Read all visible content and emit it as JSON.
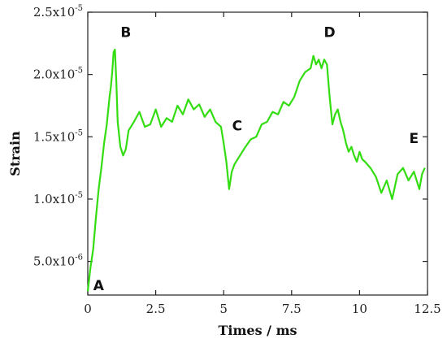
{
  "chart_data": {
    "type": "line",
    "title": "",
    "xlabel": "Times / ms",
    "ylabel": "Strain",
    "xlim": [
      0,
      12.5
    ],
    "ylim": [
      2.3e-06,
      2.5e-05
    ],
    "xticks": [
      {
        "value": 0,
        "label": "0"
      },
      {
        "value": 2.5,
        "label": "2.5"
      },
      {
        "value": 5,
        "label": "5"
      },
      {
        "value": 7.5,
        "label": "7.5"
      },
      {
        "value": 10,
        "label": "10"
      },
      {
        "value": 12.5,
        "label": "12.5"
      }
    ],
    "yticks": [
      {
        "value": 5e-06,
        "mantissa": "5.0x10",
        "exp": "-6"
      },
      {
        "value": 1e-05,
        "mantissa": "1.0x10",
        "exp": "-5"
      },
      {
        "value": 1.5e-05,
        "mantissa": "1.5x10",
        "exp": "-5"
      },
      {
        "value": 2e-05,
        "mantissa": "2.0x10",
        "exp": "-5"
      },
      {
        "value": 2.5e-05,
        "mantissa": "2.5x10",
        "exp": "-5"
      }
    ],
    "grid": false,
    "legend": "none",
    "series": [
      {
        "color": "#33dd11",
        "x": [
          0.0,
          0.1,
          0.2,
          0.3,
          0.4,
          0.5,
          0.6,
          0.7,
          0.8,
          0.85,
          0.9,
          0.95,
          1.0,
          1.05,
          1.1,
          1.2,
          1.3,
          1.4,
          1.5,
          1.7,
          1.9,
          2.1,
          2.3,
          2.5,
          2.7,
          2.9,
          3.1,
          3.3,
          3.5,
          3.7,
          3.9,
          4.1,
          4.3,
          4.5,
          4.7,
          4.9,
          5.0,
          5.1,
          5.2,
          5.3,
          5.4,
          5.6,
          5.8,
          6.0,
          6.2,
          6.4,
          6.6,
          6.8,
          7.0,
          7.2,
          7.4,
          7.6,
          7.8,
          8.0,
          8.2,
          8.3,
          8.4,
          8.5,
          8.6,
          8.7,
          8.8,
          8.9,
          9.0,
          9.1,
          9.2,
          9.3,
          9.4,
          9.5,
          9.6,
          9.7,
          9.8,
          9.9,
          10.0,
          10.1,
          10.2,
          10.4,
          10.6,
          10.8,
          11.0,
          11.2,
          11.4,
          11.6,
          11.8,
          12.0,
          12.2,
          12.3,
          12.4
        ],
        "y": [
          2.6e-06,
          4.5e-06,
          6e-06,
          8.5e-06,
          1.08e-05,
          1.25e-05,
          1.45e-05,
          1.6e-05,
          1.82e-05,
          1.9e-05,
          2.02e-05,
          2.18e-05,
          2.2e-05,
          1.95e-05,
          1.62e-05,
          1.42e-05,
          1.35e-05,
          1.4e-05,
          1.55e-05,
          1.62e-05,
          1.7e-05,
          1.58e-05,
          1.6e-05,
          1.72e-05,
          1.58e-05,
          1.65e-05,
          1.62e-05,
          1.75e-05,
          1.68e-05,
          1.8e-05,
          1.72e-05,
          1.76e-05,
          1.66e-05,
          1.72e-05,
          1.62e-05,
          1.58e-05,
          1.45e-05,
          1.3e-05,
          1.08e-05,
          1.22e-05,
          1.28e-05,
          1.35e-05,
          1.42e-05,
          1.48e-05,
          1.5e-05,
          1.6e-05,
          1.62e-05,
          1.7e-05,
          1.68e-05,
          1.78e-05,
          1.75e-05,
          1.82e-05,
          1.95e-05,
          2.02e-05,
          2.05e-05,
          2.15e-05,
          2.08e-05,
          2.12e-05,
          2.05e-05,
          2.12e-05,
          2.08e-05,
          1.82e-05,
          1.6e-05,
          1.68e-05,
          1.72e-05,
          1.62e-05,
          1.55e-05,
          1.45e-05,
          1.38e-05,
          1.42e-05,
          1.35e-05,
          1.3e-05,
          1.38e-05,
          1.32e-05,
          1.3e-05,
          1.25e-05,
          1.18e-05,
          1.05e-05,
          1.15e-05,
          1e-05,
          1.2e-05,
          1.25e-05,
          1.15e-05,
          1.22e-05,
          1.08e-05,
          1.2e-05,
          1.25e-05
        ]
      }
    ],
    "annotations": [
      {
        "text": "A",
        "x": 0.4,
        "y": 2.7e-06
      },
      {
        "text": "B",
        "x": 1.4,
        "y": 2.3e-05
      },
      {
        "text": "C",
        "x": 5.5,
        "y": 1.55e-05
      },
      {
        "text": "D",
        "x": 8.9,
        "y": 2.3e-05
      },
      {
        "text": "E",
        "x": 12.0,
        "y": 1.45e-05
      }
    ]
  }
}
